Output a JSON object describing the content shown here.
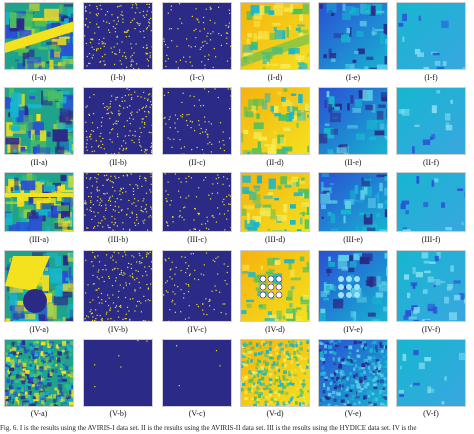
{
  "figure": {
    "rows": [
      {
        "roman": "I",
        "labels": [
          "(I-a)",
          "(I-b)",
          "(I-c)",
          "(I-d)",
          "(I-e)",
          "(I-f)"
        ]
      },
      {
        "roman": "II",
        "labels": [
          "(II-a)",
          "(II-b)",
          "(II-c)",
          "(II-d)",
          "(II-e)",
          "(II-f)"
        ]
      },
      {
        "roman": "III",
        "labels": [
          "(III-a)",
          "(III-b)",
          "(III-c)",
          "(III-d)",
          "(III-e)",
          "(III-f)"
        ]
      },
      {
        "roman": "IV",
        "labels": [
          "(IV-a)",
          "(IV-b)",
          "(IV-c)",
          "(IV-d)",
          "(IV-e)",
          "(IV-f)"
        ]
      },
      {
        "roman": "V",
        "labels": [
          "(V-a)",
          "(V-b)",
          "(V-c)",
          "(V-d)",
          "(V-e)",
          "(V-f)"
        ]
      }
    ],
    "colors": {
      "navy": "#2b2a87",
      "yellow": "#f4e21f",
      "teal": "#1fa38a",
      "green": "#52c05a",
      "blue": "#2a4fd6",
      "cyan": "#16b6d0",
      "orange": "#f5b20f"
    },
    "caption": "Fig. 6.   I is the results using the AVIRIS-I data set. II is the results using the AVIRIS-II data set. III is the results using the HYDICE data set. IV is the"
  }
}
